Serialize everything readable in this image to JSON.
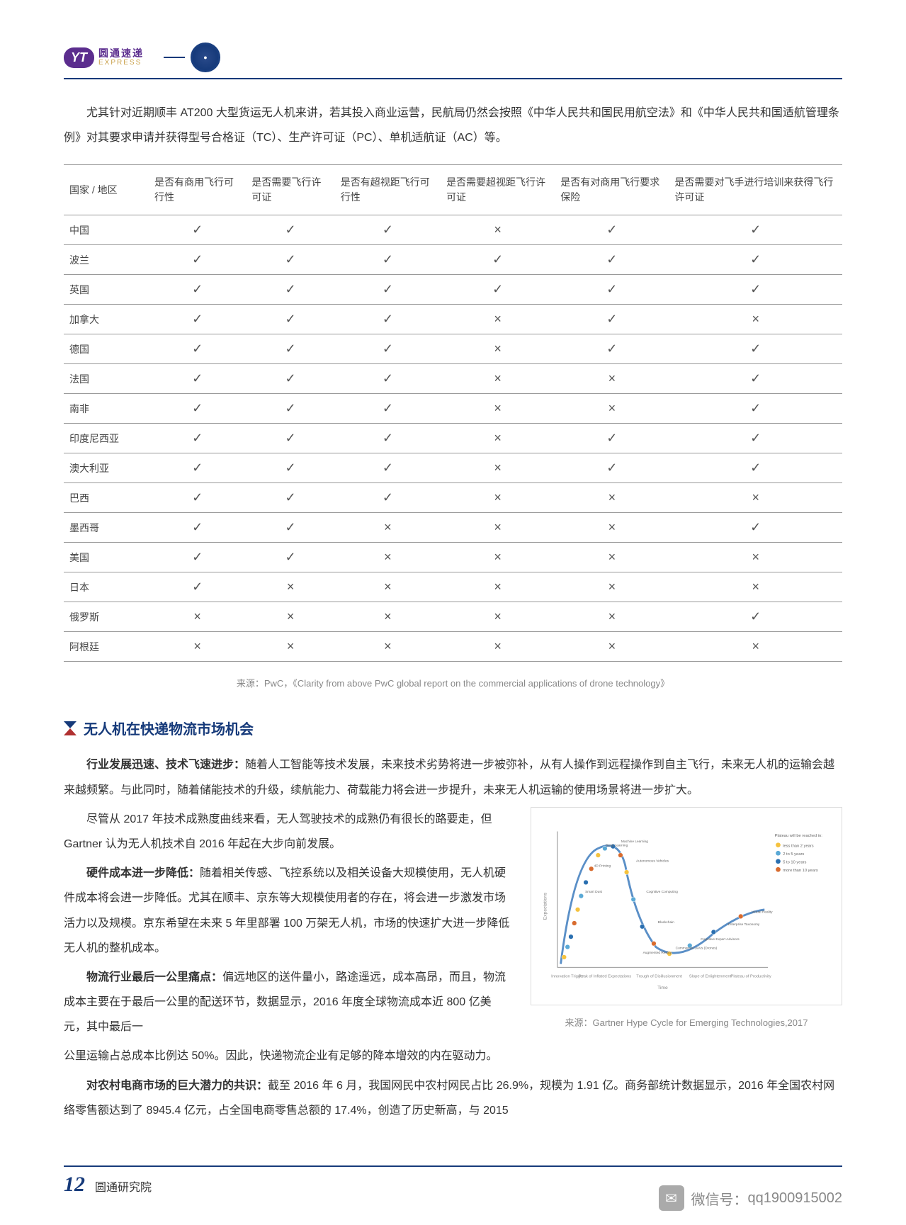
{
  "header": {
    "logo_cn": "圆通速递",
    "logo_en": "EXPRESS",
    "logo_badge": "YT"
  },
  "intro": "尤其针对近期顺丰 AT200 大型货运无人机来讲，若其投入商业运营，民航局仍然会按照《中华人民共和国民用航空法》和《中华人民共和国适航管理条例》对其要求申请并获得型号合格证（TC）、生产许可证（PC）、单机适航证（AC）等。",
  "table": {
    "headers": [
      "国家 / 地区",
      "是否有商用飞行可行性",
      "是否需要飞行许可证",
      "是否有超视距飞行可行性",
      "是否需要超视距飞行许可证",
      "是否有对商用飞行要求保险",
      "是否需要对飞手进行培训来获得飞行许可证"
    ],
    "rows": [
      [
        "中国",
        "✓",
        "✓",
        "✓",
        "×",
        "✓",
        "✓"
      ],
      [
        "波兰",
        "✓",
        "✓",
        "✓",
        "✓",
        "✓",
        "✓"
      ],
      [
        "英国",
        "✓",
        "✓",
        "✓",
        "✓",
        "✓",
        "✓"
      ],
      [
        "加拿大",
        "✓",
        "✓",
        "✓",
        "×",
        "✓",
        "×"
      ],
      [
        "德国",
        "✓",
        "✓",
        "✓",
        "×",
        "✓",
        "✓"
      ],
      [
        "法国",
        "✓",
        "✓",
        "✓",
        "×",
        "×",
        "✓"
      ],
      [
        "南非",
        "✓",
        "✓",
        "✓",
        "×",
        "×",
        "✓"
      ],
      [
        "印度尼西亚",
        "✓",
        "✓",
        "✓",
        "×",
        "✓",
        "✓"
      ],
      [
        "澳大利亚",
        "✓",
        "✓",
        "✓",
        "×",
        "✓",
        "✓"
      ],
      [
        "巴西",
        "✓",
        "✓",
        "✓",
        "×",
        "×",
        "×"
      ],
      [
        "墨西哥",
        "✓",
        "✓",
        "×",
        "×",
        "×",
        "✓"
      ],
      [
        "美国",
        "✓",
        "✓",
        "×",
        "×",
        "×",
        "×"
      ],
      [
        "日本",
        "✓",
        "×",
        "×",
        "×",
        "×",
        "×"
      ],
      [
        "俄罗斯",
        "×",
        "×",
        "×",
        "×",
        "×",
        "✓"
      ],
      [
        "阿根廷",
        "×",
        "×",
        "×",
        "×",
        "×",
        "×"
      ]
    ],
    "source": "来源：PwC，《Clarity from above PwC global report on the commercial applications of drone technology》"
  },
  "section": {
    "title": "无人机在快递物流市场机会",
    "p1_lead": "行业发展迅速、技术飞速进步：",
    "p1_rest": "随着人工智能等技术发展，未来技术劣势将进一步被弥补，从有人操作到远程操作到自主飞行，未来无人机的运输会越来越频繁。与此同时，随着储能技术的升级，续航能力、荷载能力将会进一步提升，未来无人机运输的使用场景将进一步扩大。",
    "p2": "尽管从 2017 年技术成熟度曲线来看，无人驾驶技术的成熟仍有很长的路要走，但 Gartner 认为无人机技术自 2016 年起在大步向前发展。",
    "p3_lead": "硬件成本进一步降低：",
    "p3_rest": "随着相关传感、飞控系统以及相关设备大规模使用，无人机硬件成本将会进一步降低。尤其在顺丰、京东等大规模使用者的存在，将会进一步激发市场活力以及规模。京东希望在未来 5 年里部署 100 万架无人机，市场的快速扩大进一步降低无人机的整机成本。",
    "p4_lead": "物流行业最后一公里痛点：",
    "p4_rest": "偏远地区的送件量小，路途遥远，成本高昂，而且，物流成本主要在于最后一公里的配送环节，数据显示，2016 年度全球物流成本近 800 亿美元，其中最后一公里运输占总成本比例达 50%。因此，快递物流企业有足够的降本增效的内在驱动力。",
    "p5_lead": "对农村电商市场的巨大潜力的共识：",
    "p5_rest": "截至 2016 年 6 月，我国网民中农村网民占比 26.9%，规模为 1.91 亿。商务部统计数据显示，2016 年全国农村网络零售额达到了 8945.4 亿元，占全国电商零售总额的 17.4%，创造了历史新高，与 2015"
  },
  "chart": {
    "source": "来源：Gartner Hype Cycle for Emerging Technologies,2017",
    "x_axis_label": "Time",
    "y_axis_label": "Expectations",
    "phase_labels": [
      "Innovation Trigger",
      "Peak of Inflated Expectations",
      "Trough of Disillusionment",
      "Slope of Enlightenment",
      "Plateau of Productivity"
    ],
    "legend_title": "Plateau will be reached in:",
    "legend_items": [
      "less than 2 years",
      "2 to 5 years",
      "5 to 10 years",
      "more than 10 years"
    ],
    "legend_colors": [
      "#f5c23e",
      "#5aa9d6",
      "#2a6fb0",
      "#d86b2e"
    ],
    "curve_color": "#5a8fc7",
    "dot_color": "#2a6fb0",
    "sample_labels": [
      "Smart Dust",
      "4D Printing",
      "Deep Learning",
      "Machine Learning",
      "Autonomous Vehicles",
      "Cognitive Computing",
      "Blockchain",
      "Commercial UAVs (Drones)",
      "Cognitive Expert Advisors",
      "Enterprise Taxonomy",
      "Virtual Reality",
      "Augmented Reality"
    ]
  },
  "footer": {
    "page": "12",
    "org": "圆通研究院"
  },
  "watermark": {
    "label": "微信号：",
    "value": "qq1900915002"
  }
}
